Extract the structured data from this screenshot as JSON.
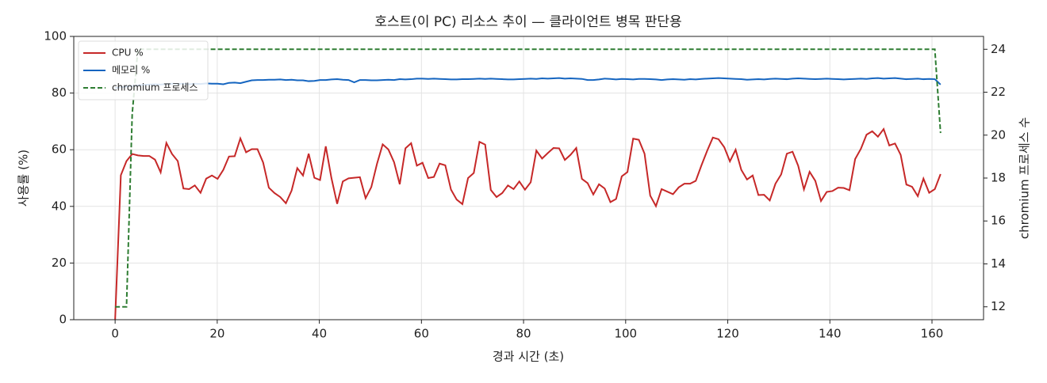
{
  "chart_data": {
    "type": "line",
    "title": "호스트(이 PC) 리소스 추이 — 클라이언트 병목 판단용",
    "x_label": "경과 시간 (초)",
    "y_label": "사용률 (%)",
    "y2_label": "chromium 프로세스 수",
    "x": [
      0,
      1.12,
      2.23,
      3.35,
      4.46,
      5.58,
      6.69,
      7.81,
      8.92,
      10.04,
      11.15,
      12.27,
      13.38,
      14.5,
      15.61,
      16.73,
      17.84,
      18.96,
      20.07,
      21.19,
      22.3,
      23.42,
      24.53,
      25.65,
      26.76,
      27.88,
      28.99,
      30.11,
      31.22,
      32.34,
      33.45,
      34.57,
      35.68,
      36.8,
      37.91,
      39.03,
      40.14,
      41.26,
      42.37,
      43.49,
      44.6,
      45.72,
      46.83,
      47.95,
      49.06,
      50.18,
      51.29,
      52.41,
      53.52,
      54.64,
      55.75,
      56.87,
      57.98,
      59.1,
      60.21,
      61.33,
      62.44,
      63.56,
      64.67,
      65.79,
      66.9,
      68.02,
      69.13,
      70.25,
      71.36,
      72.48,
      73.59,
      74.71,
      75.82,
      76.94,
      78.05,
      79.17,
      80.28,
      81.4,
      82.51,
      83.63,
      84.74,
      85.86,
      86.97,
      88.09,
      89.2,
      90.32,
      91.43,
      92.55,
      93.66,
      94.78,
      95.89,
      97.01,
      98.12,
      99.24,
      100.35,
      101.47,
      102.58,
      103.7,
      104.81,
      105.93,
      107.04,
      108.16,
      109.27,
      110.39,
      111.5,
      112.62,
      113.73,
      114.85,
      115.96,
      117.08,
      118.19,
      119.31,
      120.42,
      121.54,
      122.65,
      123.77,
      124.88,
      126,
      127.11,
      128.23,
      129.34,
      130.46,
      131.57,
      132.69,
      133.8,
      134.92,
      136.03,
      137.15,
      138.26,
      139.38,
      140.49,
      141.61,
      142.72,
      143.84,
      144.95,
      146.07,
      147.18,
      148.3,
      149.41,
      150.53,
      151.64,
      152.76,
      153.87,
      154.99,
      156.1,
      157.22,
      158.33,
      159.45,
      160.56,
      161.68
    ],
    "series": [
      {
        "name": "CPU %",
        "color": "#c62828",
        "style": "solid",
        "values": [
          0,
          51,
          56,
          58.5,
          58,
          57.8,
          57.8,
          56.5,
          52,
          62.4,
          58.5,
          56,
          46.3,
          46.1,
          47.4,
          44.8,
          49.8,
          50.9,
          49.7,
          52.9,
          57.6,
          57.7,
          64,
          59.1,
          60.2,
          60.2,
          55.5,
          46.6,
          44.7,
          43.3,
          41.1,
          45.6,
          53.5,
          50.9,
          58.6,
          50.1,
          49.3,
          61.2,
          50,
          40.9,
          48.8,
          49.9,
          50.1,
          50.3,
          42.9,
          46.8,
          55,
          61.9,
          60.1,
          55.6,
          47.8,
          60.5,
          62.3,
          54.4,
          55.4,
          50,
          50.4,
          55.1,
          54.5,
          45.9,
          42.4,
          40.8,
          50,
          51.8,
          62.8,
          61.8,
          45.8,
          43.3,
          44.7,
          47.4,
          46.1,
          48.8,
          45.9,
          48.5,
          59.7,
          56.9,
          58.8,
          60.6,
          60.5,
          56.4,
          58.2,
          60.6,
          49.7,
          48.2,
          44.2,
          47.8,
          46.3,
          41.5,
          42.6,
          50.6,
          52.1,
          63.9,
          63.5,
          58.6,
          43.8,
          40.1,
          46.1,
          45.2,
          44.3,
          46.7,
          48,
          48,
          49,
          54.5,
          59.6,
          64.3,
          63.7,
          60.9,
          55.9,
          60,
          52.9,
          49.5,
          50.9,
          44,
          44.1,
          42.1,
          48,
          51.3,
          58.6,
          59.3,
          54.3,
          46,
          52.2,
          49,
          41.9,
          45.1,
          45.4,
          46.6,
          46.5,
          45.7,
          56.7,
          60.3,
          65.3,
          66.5,
          64.6,
          67.3,
          61.5,
          62.2,
          58.2,
          47.7,
          46.9,
          43.6,
          49.8,
          44.8,
          46.1,
          51.4
        ]
      },
      {
        "name": "메모리 %",
        "color": "#1565c0",
        "style": "solid",
        "values": [
          81.8,
          82,
          82.3,
          82.5,
          82.7,
          82.9,
          83,
          83.1,
          83,
          83.2,
          83.3,
          83.2,
          83.3,
          83.1,
          83.3,
          83.2,
          83.4,
          83.3,
          83.3,
          83.1,
          83.6,
          83.7,
          83.5,
          84,
          84.5,
          84.6,
          84.6,
          84.7,
          84.7,
          84.8,
          84.6,
          84.7,
          84.5,
          84.5,
          84.2,
          84.3,
          84.6,
          84.6,
          84.8,
          84.9,
          84.7,
          84.6,
          83.8,
          84.6,
          84.6,
          84.5,
          84.5,
          84.6,
          84.7,
          84.6,
          84.9,
          84.8,
          84.9,
          85.1,
          85.1,
          85,
          85.1,
          85,
          84.9,
          84.8,
          84.8,
          84.9,
          84.9,
          85,
          85.1,
          85,
          85.1,
          85,
          84.9,
          84.8,
          84.8,
          84.9,
          85,
          85.1,
          85,
          85.2,
          85.1,
          85.2,
          85.3,
          85.1,
          85.2,
          85.1,
          85,
          84.6,
          84.6,
          84.8,
          85.1,
          85,
          84.8,
          85,
          84.9,
          84.8,
          85,
          85,
          84.9,
          84.8,
          84.6,
          84.8,
          84.9,
          84.8,
          84.7,
          84.9,
          84.8,
          85,
          85.1,
          85.2,
          85.3,
          85.2,
          85.1,
          85,
          84.9,
          84.7,
          84.8,
          84.9,
          84.8,
          85,
          85.1,
          85,
          84.9,
          85.1,
          85.2,
          85.1,
          85,
          84.9,
          85,
          85.1,
          85,
          84.9,
          84.8,
          84.9,
          85,
          85.1,
          85,
          85.2,
          85.3,
          85.1,
          85.2,
          85.3,
          85.1,
          84.9,
          85,
          85.1,
          84.9,
          85,
          84.9,
          83
        ]
      },
      {
        "name": "chromium 프로세스",
        "color": "#2e7d32",
        "style": "dashed",
        "axis": "y2",
        "values": [
          12,
          12,
          12,
          21,
          24,
          24,
          24,
          24,
          24,
          24,
          24,
          24,
          24,
          24,
          24,
          24,
          24,
          24,
          24,
          24,
          24,
          24,
          24,
          24,
          24,
          24,
          24,
          24,
          24,
          24,
          24,
          24,
          24,
          24,
          24,
          24,
          24,
          24,
          24,
          24,
          24,
          24,
          24,
          24,
          24,
          24,
          24,
          24,
          24,
          24,
          24,
          24,
          24,
          24,
          24,
          24,
          24,
          24,
          24,
          24,
          24,
          24,
          24,
          24,
          24,
          24,
          24,
          24,
          24,
          24,
          24,
          24,
          24,
          24,
          24,
          24,
          24,
          24,
          24,
          24,
          24,
          24,
          24,
          24,
          24,
          24,
          24,
          24,
          24,
          24,
          24,
          24,
          24,
          24,
          24,
          24,
          24,
          24,
          24,
          24,
          24,
          24,
          24,
          24,
          24,
          24,
          24,
          24,
          24,
          24,
          24,
          24,
          24,
          24,
          24,
          24,
          24,
          24,
          24,
          24,
          24,
          24,
          24,
          24,
          24,
          24,
          24,
          24,
          24,
          24,
          24,
          24,
          24,
          24,
          24,
          24,
          24,
          24,
          24,
          24,
          24,
          24,
          24,
          24,
          24,
          20.1
        ]
      }
    ],
    "xlim": [
      -8.1,
      170.1
    ],
    "xticks": [
      0,
      20,
      40,
      60,
      80,
      100,
      120,
      140,
      160
    ],
    "ylim": [
      0,
      100
    ],
    "yticks": [
      0,
      20,
      40,
      60,
      80,
      100
    ],
    "y2lim": [
      11.4,
      24.6
    ],
    "y2ticks": [
      12,
      14,
      16,
      18,
      20,
      22,
      24
    ],
    "grid": true,
    "legend": "upper-left"
  }
}
